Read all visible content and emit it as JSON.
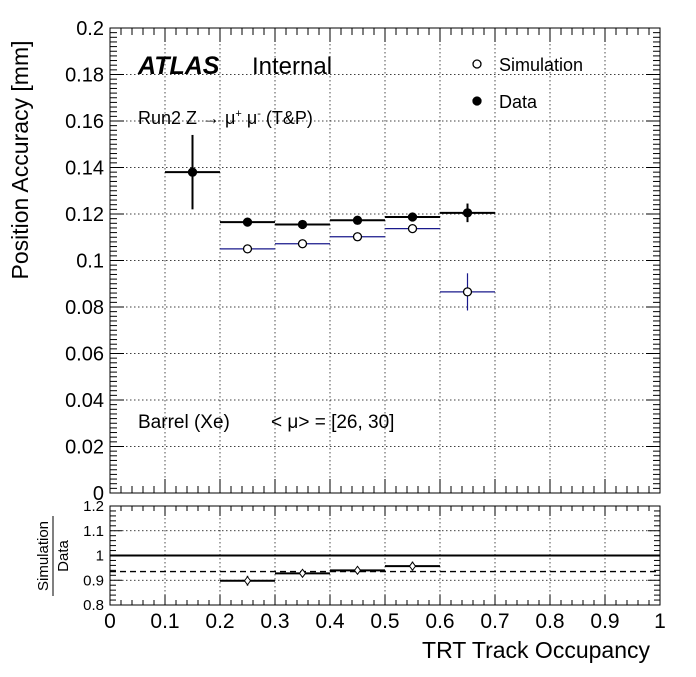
{
  "chart_data": [
    {
      "type": "scatter",
      "panel": "main",
      "ylabel": "Position Accuracy [mm]",
      "xlim": [
        0,
        1
      ],
      "ylim": [
        0,
        0.2
      ],
      "grid": true,
      "legend_position": "top-right",
      "xticks": [
        "0",
        "0.1",
        "0.2",
        "0.3",
        "0.4",
        "0.5",
        "0.6",
        "0.7",
        "0.8",
        "0.9",
        "1"
      ],
      "yticks": [
        "0",
        "0.02",
        "0.04",
        "0.06",
        "0.08",
        "0.1",
        "0.12",
        "0.14",
        "0.16",
        "0.18",
        "0.2"
      ],
      "annotations": {
        "atlas": "ATLAS",
        "internal": "Internal",
        "process_prefix": "Run2 Z ",
        "process_arrow": "→",
        "process_mu1": " μ",
        "process_sup1": "+",
        "process_mu2": " μ",
        "process_sup2": "-",
        "process_suffix": " (T&P)",
        "region": "Barrel (Xe)",
        "pileup": "< μ> = [26, 30]"
      },
      "series": [
        {
          "name": "Simulation",
          "marker": "open-circle",
          "color": "#1a1a8c",
          "points": [
            {
              "x": 0.25,
              "xlo": 0.2,
              "xhi": 0.3,
              "y": 0.105,
              "yerr": 0.0015
            },
            {
              "x": 0.35,
              "xlo": 0.3,
              "xhi": 0.4,
              "y": 0.1072,
              "yerr": 0.0008
            },
            {
              "x": 0.45,
              "xlo": 0.4,
              "xhi": 0.5,
              "y": 0.1102,
              "yerr": 0.0008
            },
            {
              "x": 0.55,
              "xlo": 0.5,
              "xhi": 0.6,
              "y": 0.1137,
              "yerr": 0.001
            },
            {
              "x": 0.65,
              "xlo": 0.6,
              "xhi": 0.7,
              "y": 0.0865,
              "yerr": 0.008
            }
          ]
        },
        {
          "name": "Data",
          "marker": "filled-circle",
          "color": "#000000",
          "points": [
            {
              "x": 0.15,
              "xlo": 0.1,
              "xhi": 0.2,
              "y": 0.138,
              "yerr": 0.016
            },
            {
              "x": 0.25,
              "xlo": 0.2,
              "xhi": 0.3,
              "y": 0.1165,
              "yerr": 0.0015
            },
            {
              "x": 0.35,
              "xlo": 0.3,
              "xhi": 0.4,
              "y": 0.1155,
              "yerr": 0.001
            },
            {
              "x": 0.45,
              "xlo": 0.4,
              "xhi": 0.5,
              "y": 0.1173,
              "yerr": 0.001
            },
            {
              "x": 0.55,
              "xlo": 0.5,
              "xhi": 0.6,
              "y": 0.1187,
              "yerr": 0.001
            },
            {
              "x": 0.65,
              "xlo": 0.6,
              "xhi": 0.7,
              "y": 0.1205,
              "yerr": 0.004
            }
          ]
        }
      ]
    },
    {
      "type": "scatter",
      "panel": "ratio",
      "ylabel_numerator": "Simulation",
      "ylabel_denominator": "Data",
      "xlabel": "TRT Track Occupancy",
      "xlim": [
        0,
        1
      ],
      "ylim": [
        0.8,
        1.2
      ],
      "grid": true,
      "yticks": [
        "0.8",
        "0.9",
        "1",
        "1.1",
        "1.2"
      ],
      "reference_lines": [
        {
          "y": 1.0,
          "style": "solid"
        },
        {
          "y": 0.935,
          "style": "dashed"
        }
      ],
      "series": [
        {
          "name": "Simulation",
          "marker": "open-diamond",
          "color": "#000000",
          "points": [
            {
              "x": 0.25,
              "xlo": 0.2,
              "xhi": 0.3,
              "y": 0.898,
              "yerr": 0.02
            },
            {
              "x": 0.35,
              "xlo": 0.3,
              "xhi": 0.4,
              "y": 0.928,
              "yerr": 0.006
            },
            {
              "x": 0.45,
              "xlo": 0.4,
              "xhi": 0.5,
              "y": 0.94,
              "yerr": 0.005
            },
            {
              "x": 0.55,
              "xlo": 0.5,
              "xhi": 0.6,
              "y": 0.957,
              "yerr": 0.018
            }
          ]
        }
      ]
    }
  ]
}
